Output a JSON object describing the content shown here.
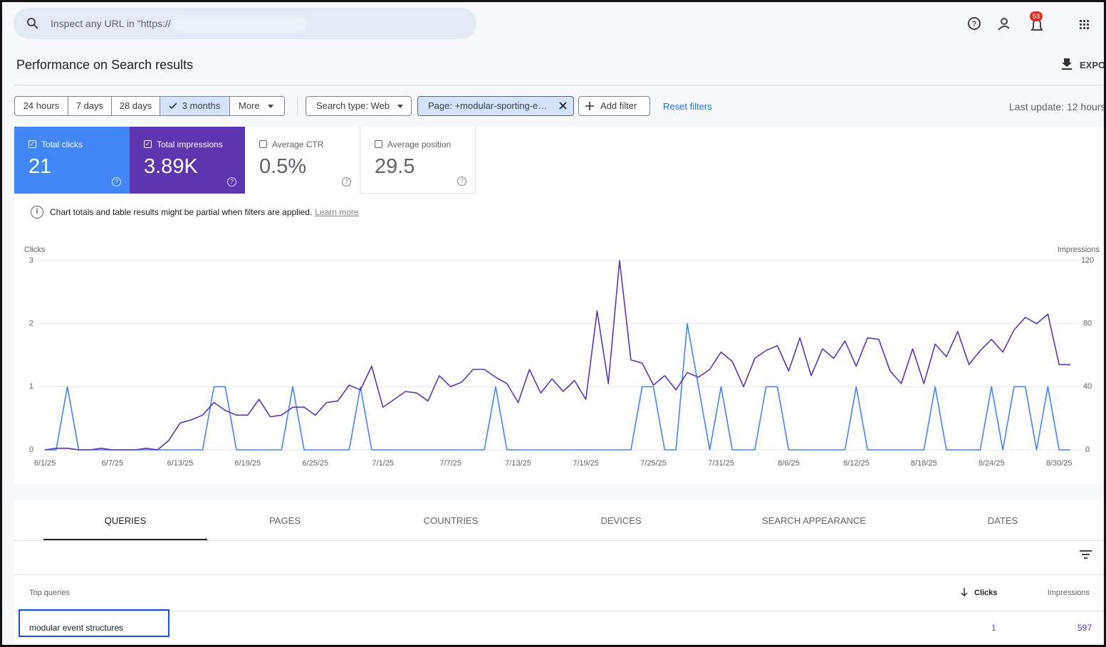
{
  "search": {
    "placeholder": "Inspect any URL in \"https://"
  },
  "notification_count": "53",
  "title": "Performance on Search results",
  "export": "EXPO",
  "date_ranges": [
    "24 hours",
    "7 days",
    "28 days",
    "3 months",
    "More"
  ],
  "filters": [
    "Search type: Web",
    "Page: +modular-sporting-e…"
  ],
  "add_filter": "Add filter",
  "reset_filters": "Reset filters",
  "last_update": "Last update: 12 hours",
  "metrics": [
    {
      "label": "Total clicks",
      "value": "21"
    },
    {
      "label": "Total impressions",
      "value": "3.89K"
    },
    {
      "label": "Average CTR",
      "value": "0.5%"
    },
    {
      "label": "Average position",
      "value": "29.5"
    }
  ],
  "notice": {
    "text": "Chart totals and table results might be partial when filters are applied.",
    "link": "Learn more"
  },
  "chart_data": {
    "type": "line",
    "categories": [
      "6/1/25",
      null,
      null,
      null,
      null,
      null,
      "6/7/25",
      null,
      null,
      null,
      null,
      null,
      "6/13/25",
      null,
      null,
      null,
      null,
      null,
      "6/19/25",
      null,
      null,
      null,
      null,
      null,
      "6/25/25",
      null,
      null,
      null,
      null,
      null,
      "7/1/25",
      null,
      null,
      null,
      null,
      null,
      "7/7/25",
      null,
      null,
      null,
      null,
      null,
      "7/13/25",
      null,
      null,
      null,
      null,
      null,
      "7/19/25",
      null,
      null,
      null,
      null,
      null,
      "7/25/25",
      null,
      null,
      null,
      null,
      null,
      "7/31/25",
      null,
      null,
      null,
      null,
      null,
      "8/6/25",
      null,
      null,
      null,
      null,
      null,
      "8/12/25",
      null,
      null,
      null,
      null,
      null,
      "8/18/25",
      null,
      null,
      null,
      null,
      null,
      "8/24/25",
      null,
      null,
      null,
      null,
      null,
      "8/30/25",
      null
    ],
    "series": [
      {
        "name": "Clicks",
        "color": "#4285f4",
        "values": [
          0,
          0,
          1,
          0,
          0,
          0,
          0,
          0,
          0,
          0,
          0,
          0,
          0,
          0,
          0,
          1,
          1,
          0,
          0,
          0,
          0,
          0,
          1,
          0,
          0,
          0,
          0,
          0,
          1,
          0,
          0,
          0,
          0,
          0,
          0,
          0,
          0,
          0,
          0,
          0,
          1,
          0,
          0,
          0,
          0,
          0,
          0,
          0,
          0,
          0,
          0,
          0,
          0,
          1,
          1,
          0,
          0,
          2,
          1,
          0,
          1,
          0,
          0,
          0,
          1,
          1,
          0,
          0,
          0,
          0,
          0,
          0,
          1,
          0,
          0,
          0,
          0,
          0,
          0,
          1,
          0,
          0,
          0,
          0,
          1,
          0,
          1,
          1,
          0,
          1,
          0,
          0
        ]
      },
      {
        "name": "Impressions",
        "color": "#5e35b1",
        "axis": "y2",
        "values": [
          0,
          1,
          1,
          0,
          0,
          1,
          0,
          0,
          0,
          1,
          0,
          6,
          17,
          19,
          22,
          30,
          25,
          22,
          22,
          32,
          21,
          22,
          27,
          27,
          22,
          30,
          31,
          41,
          38,
          53,
          27,
          32,
          37,
          36,
          31,
          47,
          40,
          43,
          51,
          51,
          46,
          42,
          30,
          51,
          36,
          45,
          37,
          44,
          32,
          88,
          42,
          120,
          57,
          55,
          41,
          47,
          38,
          49,
          46,
          51,
          62,
          56,
          40,
          58,
          63,
          66,
          50,
          71,
          47,
          64,
          58,
          69,
          53,
          71,
          70,
          50,
          42,
          64,
          42,
          67,
          59,
          75,
          54,
          63,
          70,
          62,
          76,
          84,
          80,
          86,
          54,
          54
        ]
      }
    ],
    "ylim": [
      0,
      3
    ],
    "yticks": [
      0,
      1,
      2,
      3
    ],
    "y2lim": [
      0,
      120
    ],
    "y2ticks": [
      0,
      40,
      80,
      120
    ],
    "grid": true
  },
  "tabs": [
    "QUERIES",
    "PAGES",
    "COUNTRIES",
    "DEVICES",
    "SEARCH APPEARANCE",
    "DATES"
  ],
  "table": {
    "headers": [
      "Top queries",
      "Clicks",
      "Impressions"
    ],
    "rows": [
      [
        "modular event structures",
        "1",
        "597"
      ]
    ]
  }
}
